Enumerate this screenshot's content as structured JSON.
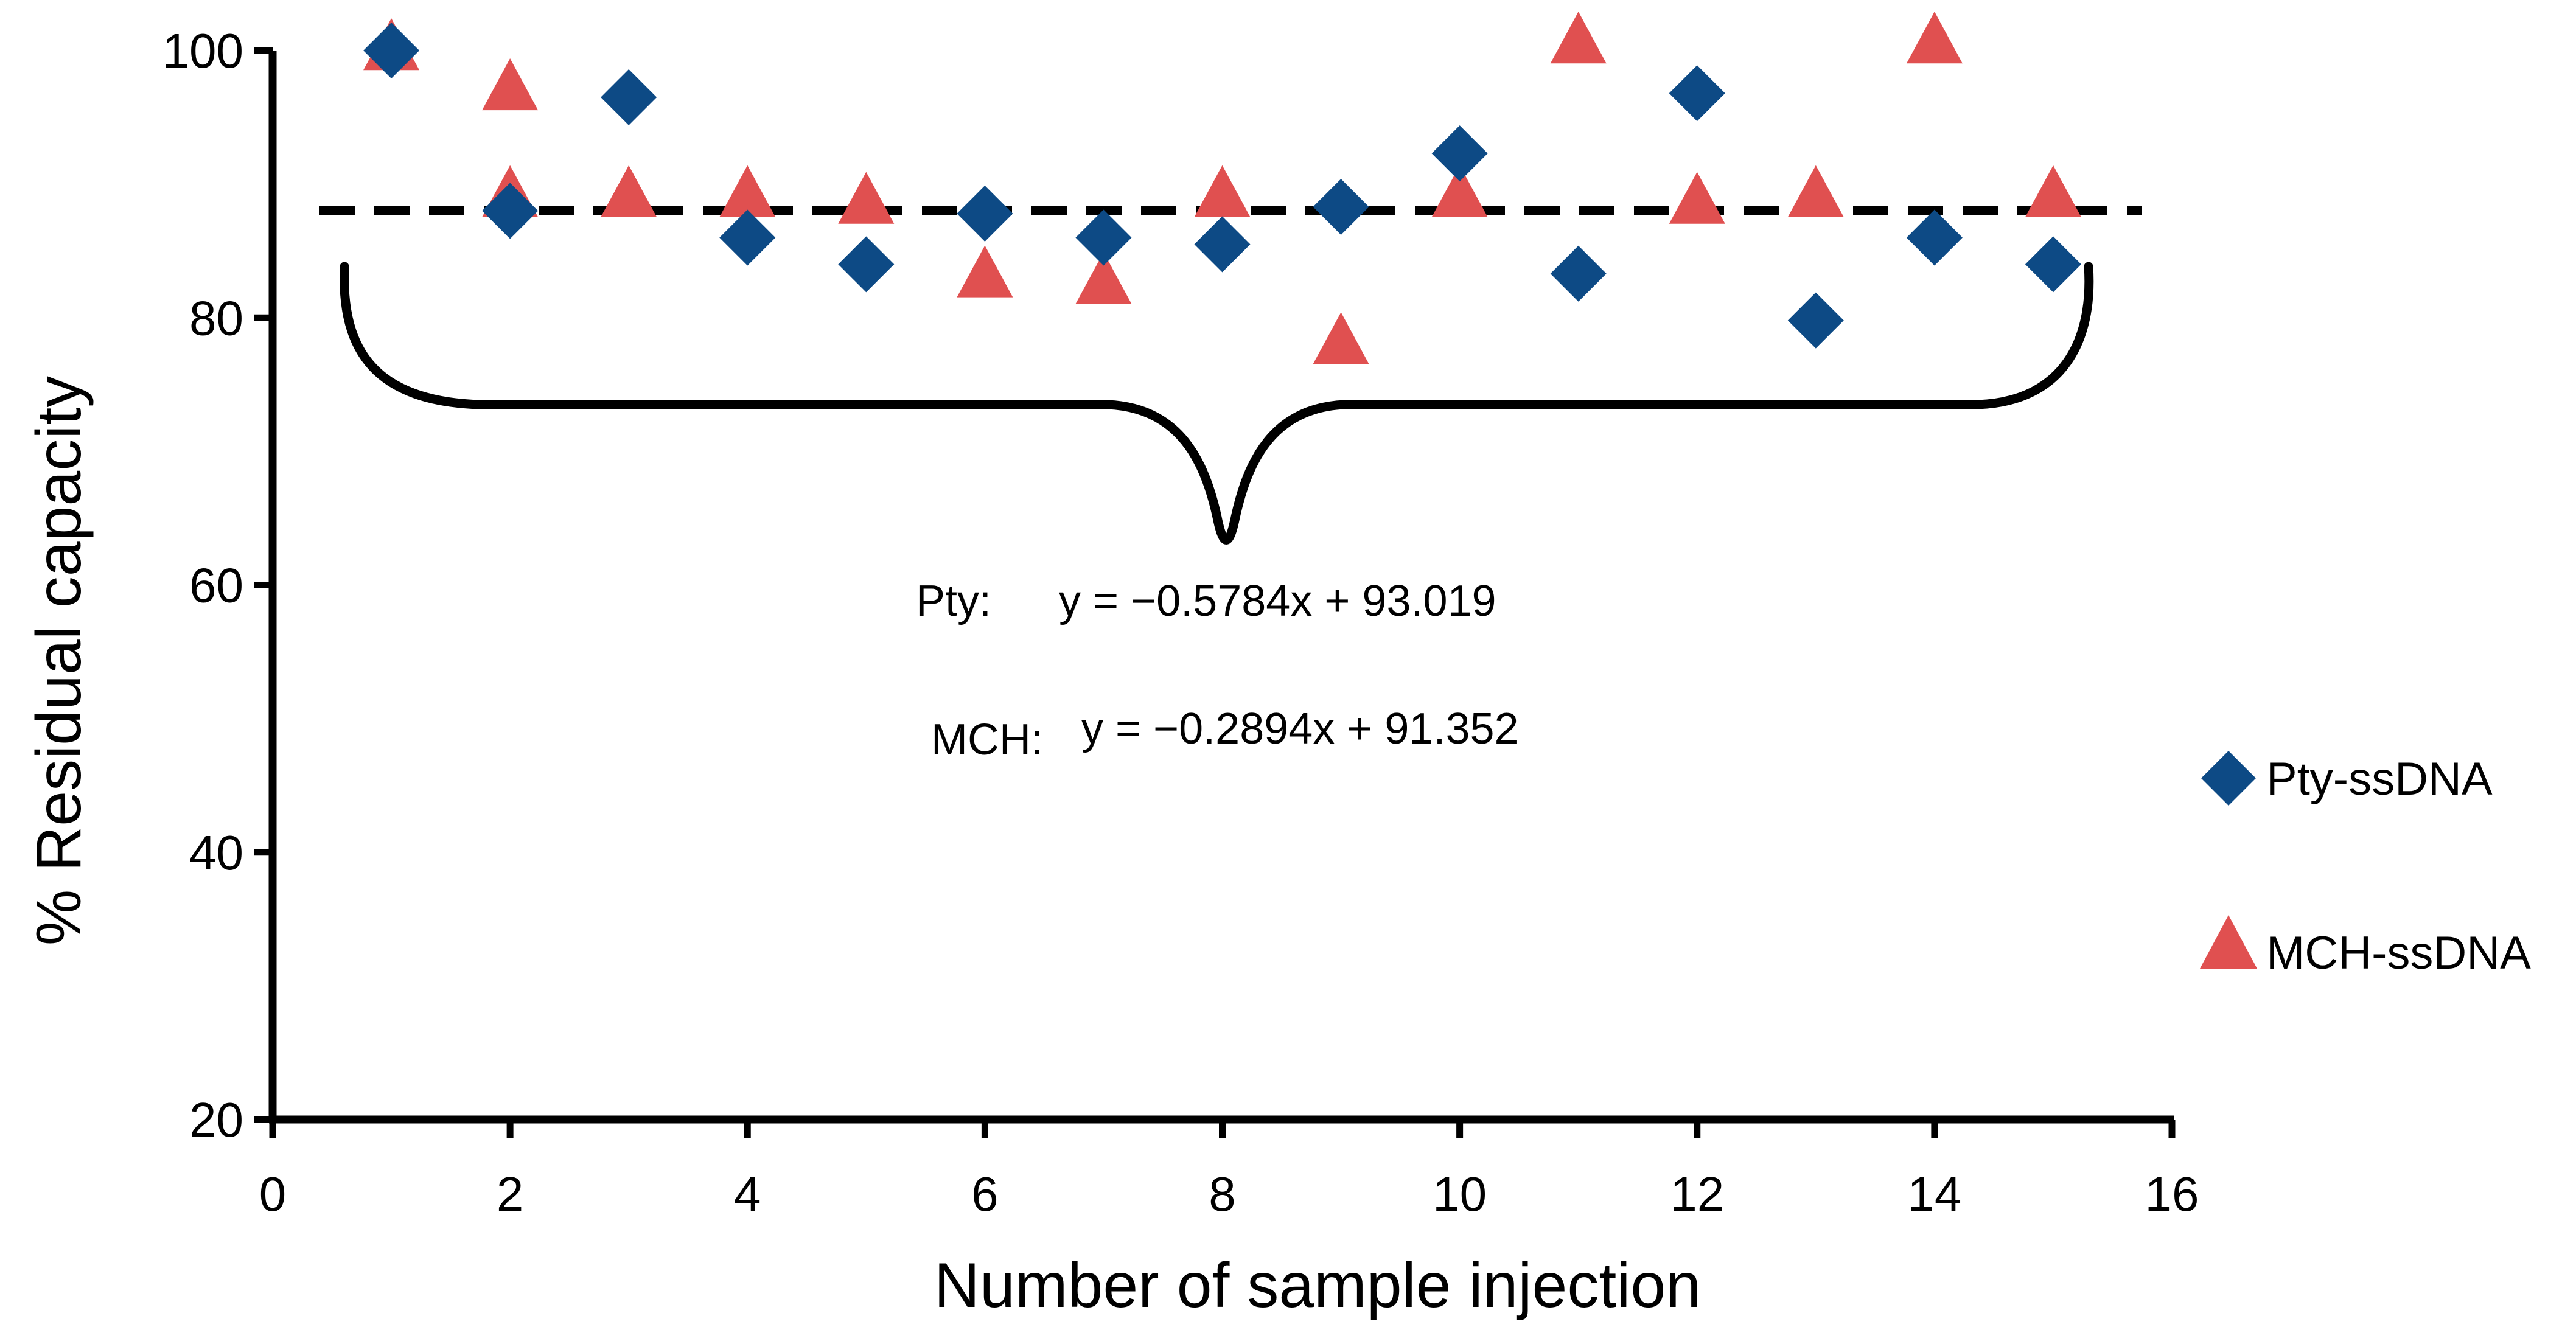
{
  "chart_data": {
    "type": "scatter",
    "title": "",
    "xlabel": "Number of sample injection",
    "ylabel": "% Residual capacity",
    "xlim": [
      0,
      16
    ],
    "ylim": [
      20,
      100
    ],
    "xticks": [
      0,
      2,
      4,
      6,
      8,
      10,
      12,
      14,
      16
    ],
    "yticks": [
      20,
      40,
      60,
      80,
      100
    ],
    "grid": false,
    "legend_position": "right",
    "reference_line": {
      "y": 88,
      "style": "dashed"
    },
    "series": [
      {
        "name": "Pty-ssDNA",
        "marker": "diamond",
        "color": "#0D4A85",
        "x": [
          1,
          2,
          3,
          4,
          5,
          6,
          7,
          8,
          9,
          10,
          11,
          12,
          13,
          14,
          15
        ],
        "y": [
          100,
          88,
          96.5,
          86,
          84,
          87.8,
          86,
          85.5,
          88.3,
          92.3,
          83.3,
          96.8,
          79.8,
          86,
          84
        ]
      },
      {
        "name": "MCH-ssDNA",
        "marker": "triangle",
        "color": "#E05050",
        "x": [
          1,
          2,
          2,
          3,
          4,
          5,
          6,
          7,
          8,
          9,
          10,
          11,
          12,
          13,
          14,
          15
        ],
        "y": [
          100,
          97,
          89,
          89,
          89,
          88.5,
          83,
          82.5,
          89,
          78,
          89,
          100.5,
          88.5,
          89,
          100.5,
          89
        ]
      }
    ],
    "annotations": [
      {
        "label": "Pty:",
        "text": "y = −0.5784x + 93.019"
      },
      {
        "label": "MCH:",
        "text": "y = −0.2894x + 91.352"
      }
    ]
  }
}
